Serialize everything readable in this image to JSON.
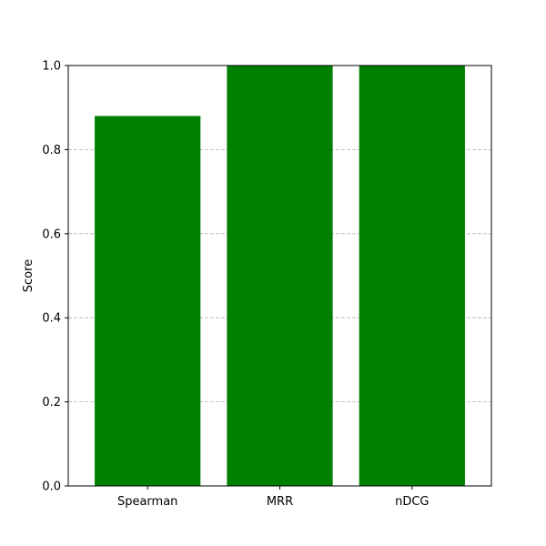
{
  "chart_data": {
    "type": "bar",
    "categories": [
      "Spearman",
      "MRR",
      "nDCG"
    ],
    "values": [
      0.88,
      1.0,
      1.0
    ],
    "title": "",
    "xlabel": "",
    "ylabel": "Score",
    "ylim": [
      0.0,
      1.0
    ],
    "yticks": [
      "0.0",
      "0.2",
      "0.4",
      "0.6",
      "0.8",
      "1.0"
    ],
    "grid": "y-dashed",
    "colors": {
      "bar": "#008000",
      "grid": "#b0b0b0",
      "axis": "#000000"
    }
  }
}
